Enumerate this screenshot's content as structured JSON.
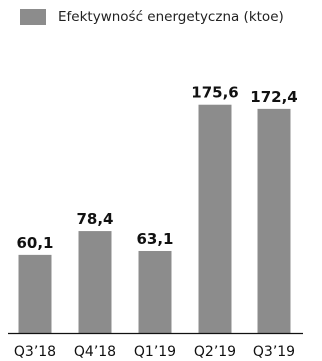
{
  "chart_data": {
    "type": "bar",
    "categories": [
      "Q3’18",
      "Q4’18",
      "Q1’19",
      "Q2’19",
      "Q3’19"
    ],
    "series": [
      {
        "name": "Efektywność energetyczna (ktoe)",
        "values": [
          60.1,
          78.4,
          63.1,
          175.6,
          172.4
        ],
        "labels": [
          "60,1",
          "78,4",
          "63,1",
          "175,6",
          "172,4"
        ]
      }
    ],
    "legend_position": "top-left",
    "grid": false,
    "ylim": [
      0,
      180
    ]
  },
  "colors": {
    "bar": "#8c8c8c",
    "text": "#111111",
    "axis": "#111111"
  }
}
